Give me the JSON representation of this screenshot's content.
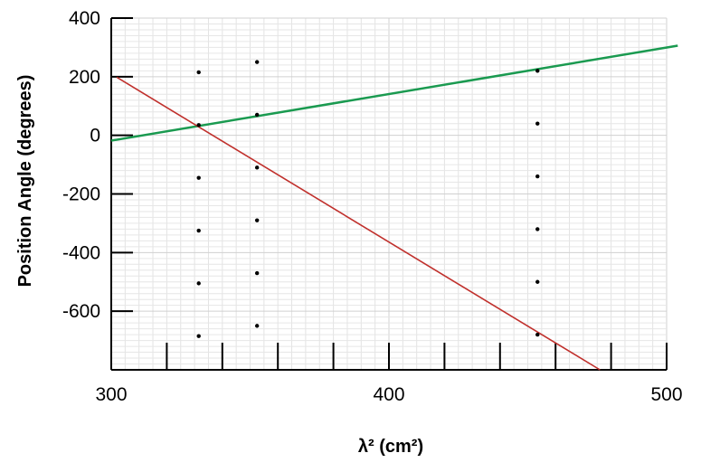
{
  "chart_data": {
    "type": "scatter",
    "xlabel": "λ² (cm²)",
    "ylabel": "Position Angle (degrees)",
    "xlim": [
      300,
      500
    ],
    "ylim": [
      -800,
      400
    ],
    "x_ticks": [
      300,
      400,
      500
    ],
    "y_ticks": [
      400,
      200,
      0,
      -200,
      -400,
      -600
    ],
    "x_minor_step": 5,
    "y_minor_step": 20,
    "x_major_tick_step": 20,
    "grid": true,
    "series": [
      {
        "kind": "points",
        "color": "#000000",
        "points": [
          [
            331.5,
            215
          ],
          [
            331.5,
            35
          ],
          [
            331.5,
            -145
          ],
          [
            331.5,
            -325
          ],
          [
            331.5,
            -505
          ],
          [
            331.5,
            -685
          ],
          [
            352.5,
            250
          ],
          [
            352.5,
            70
          ],
          [
            352.5,
            -110
          ],
          [
            352.5,
            -290
          ],
          [
            352.5,
            -470
          ],
          [
            352.5,
            -650
          ],
          [
            453.5,
            220
          ],
          [
            453.5,
            40
          ],
          [
            453.5,
            -140
          ],
          [
            453.5,
            -320
          ],
          [
            453.5,
            -500
          ],
          [
            453.5,
            -680
          ]
        ]
      },
      {
        "kind": "line",
        "color": "#1a9a50",
        "points": [
          [
            300,
            -18
          ],
          [
            504,
            306
          ]
        ]
      },
      {
        "kind": "line",
        "color": "#c0302c",
        "points": [
          [
            302,
            198
          ],
          [
            476,
            -800
          ]
        ]
      }
    ]
  }
}
